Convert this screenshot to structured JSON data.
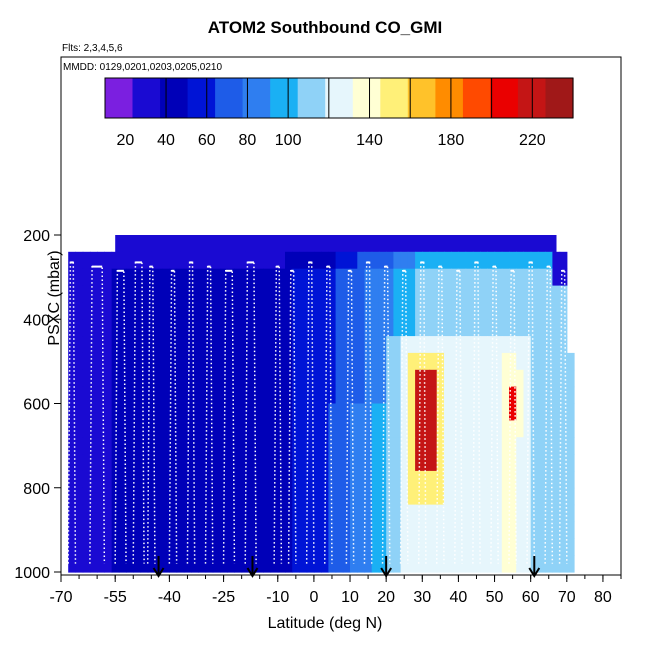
{
  "chart_data": {
    "type": "heatmap",
    "title": "ATOM2 Southbound CO_GMI",
    "flights_label": "Flts: 2,3,4,5,6",
    "dates_label": "MMDD: 0129,0201,0203,0205,0210",
    "xlabel": "Latitude (deg N)",
    "ylabel": "PSXC (mbar)",
    "xlim": [
      -70,
      85
    ],
    "ylim": [
      1000,
      50
    ],
    "y_inverted": true,
    "x_ticks": [
      -70,
      -55,
      -40,
      -25,
      -10,
      0,
      10,
      20,
      30,
      40,
      50,
      60,
      70,
      80
    ],
    "x_tick_labels": [
      "-70",
      "-55",
      "-40",
      "-25",
      "-10",
      "0",
      "10",
      "20",
      "30",
      "40",
      "50",
      "60",
      "70",
      "80"
    ],
    "y_ticks": [
      200,
      400,
      600,
      800,
      1000
    ],
    "y_tick_labels": [
      "200",
      "400",
      "600",
      "800",
      "1000"
    ],
    "colorbar": {
      "range": [
        10,
        240
      ],
      "tick_values": [
        20,
        40,
        60,
        80,
        100,
        140,
        180,
        220
      ],
      "tick_labels": [
        "20",
        "40",
        "60",
        "80",
        "100",
        "140",
        "180",
        "220"
      ],
      "colors": [
        "#7b1fe0",
        "#1a0ad2",
        "#0000b8",
        "#0014d6",
        "#1e5ce8",
        "#2f7ef0",
        "#1ab0f4",
        "#8fd2f7",
        "#e6f6fc",
        "#ffffd4",
        "#fff078",
        "#ffc22a",
        "#ff8c00",
        "#ff4a00",
        "#ea0000",
        "#c41515",
        "#a01818"
      ]
    },
    "arrows_at_latitude": [
      -43,
      -17,
      20,
      61
    ],
    "description_regions": [
      {
        "lat": [
          -68,
          -10
        ],
        "p": [
          200,
          1000
        ],
        "co": "30-50"
      },
      {
        "lat": [
          20,
          60
        ],
        "p": [
          460,
          1000
        ],
        "co": "100-140"
      },
      {
        "lat": [
          27,
          35
        ],
        "p": [
          520,
          750
        ],
        "co": "200-230"
      },
      {
        "lat": [
          53,
          57
        ],
        "p": [
          560,
          650
        ],
        "co": "200-220"
      }
    ]
  }
}
